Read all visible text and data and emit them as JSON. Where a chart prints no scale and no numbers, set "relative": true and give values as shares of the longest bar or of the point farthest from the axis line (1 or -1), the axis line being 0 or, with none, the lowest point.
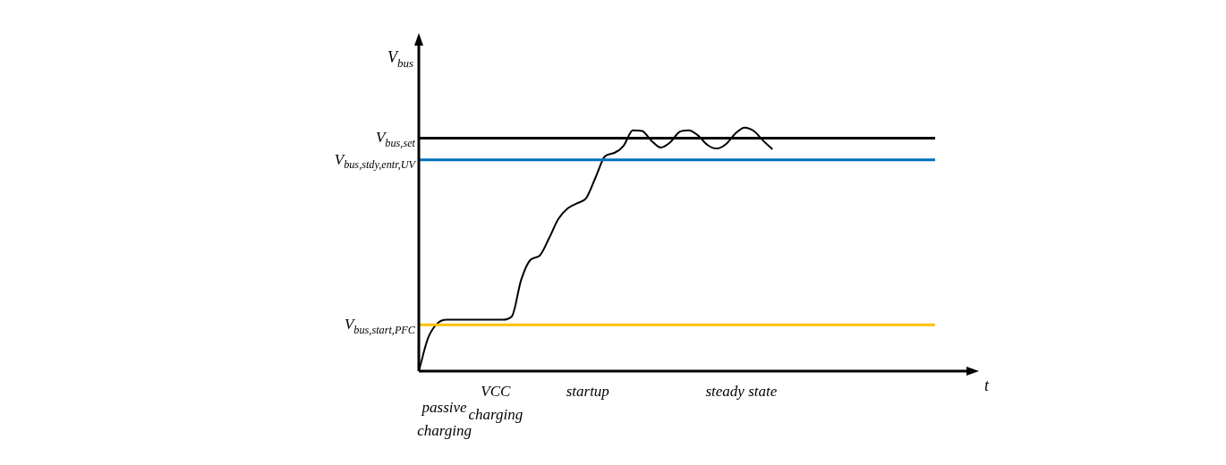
{
  "chart_data": {
    "type": "line",
    "relative": true,
    "ylabel": "V$_{bus}$",
    "xlabel": "t",
    "categories": [
      null,
      null,
      null,
      null,
      null,
      null,
      null,
      null,
      null,
      null,
      null,
      null,
      null,
      null,
      null,
      null,
      null,
      null,
      null,
      null,
      null,
      null,
      null,
      null,
      null,
      null,
      null,
      null,
      null,
      null,
      null,
      null,
      null,
      null,
      null,
      null,
      null,
      null,
      null,
      null,
      null,
      null,
      null,
      null,
      null,
      null,
      null,
      null,
      null,
      null,
      null,
      null,
      null,
      null,
      null,
      null
    ],
    "series": [
      {
        "color": "#000000",
        "values": [
          0,
          0.136,
          0.196,
          0.211,
          0.211,
          0.211,
          0.211,
          0.211,
          0.211,
          0.211,
          0.225,
          0.375,
          0.457,
          0.475,
          0.546,
          0.625,
          0.668,
          0.689,
          0.711,
          0.796,
          0.882,
          0.896,
          0.925,
          0.989,
          0.986,
          0.946,
          0.918,
          0.939,
          0.982,
          0.989,
          0.968,
          0.929,
          0.914,
          0.932,
          0.975,
          1.0,
          0.986,
          0.946,
          0.911,
          null,
          null,
          null,
          null,
          null,
          null,
          null,
          null,
          null,
          null,
          null,
          null,
          null,
          null,
          null,
          null,
          null
        ]
      }
    ],
    "ref_lines": [
      {
        "axis": "y",
        "value": 0.957,
        "label": "V$_{bus,set}$",
        "color": "#000000"
      },
      {
        "axis": "y",
        "value": 0.868,
        "label": "V$_{bus,stdy,entr,UV}$",
        "color": "#0070c0"
      },
      {
        "axis": "y",
        "value": 0.19,
        "label": "V$_{bus,start,PFC}$",
        "color": "#ffc000"
      }
    ],
    "annotations": [
      "passive charging",
      "VCC charging",
      "startup",
      "steady state"
    ],
    "grid": false,
    "legend": false,
    "marker": "none",
    "line_style": "solid",
    "tick_labels": false
  }
}
